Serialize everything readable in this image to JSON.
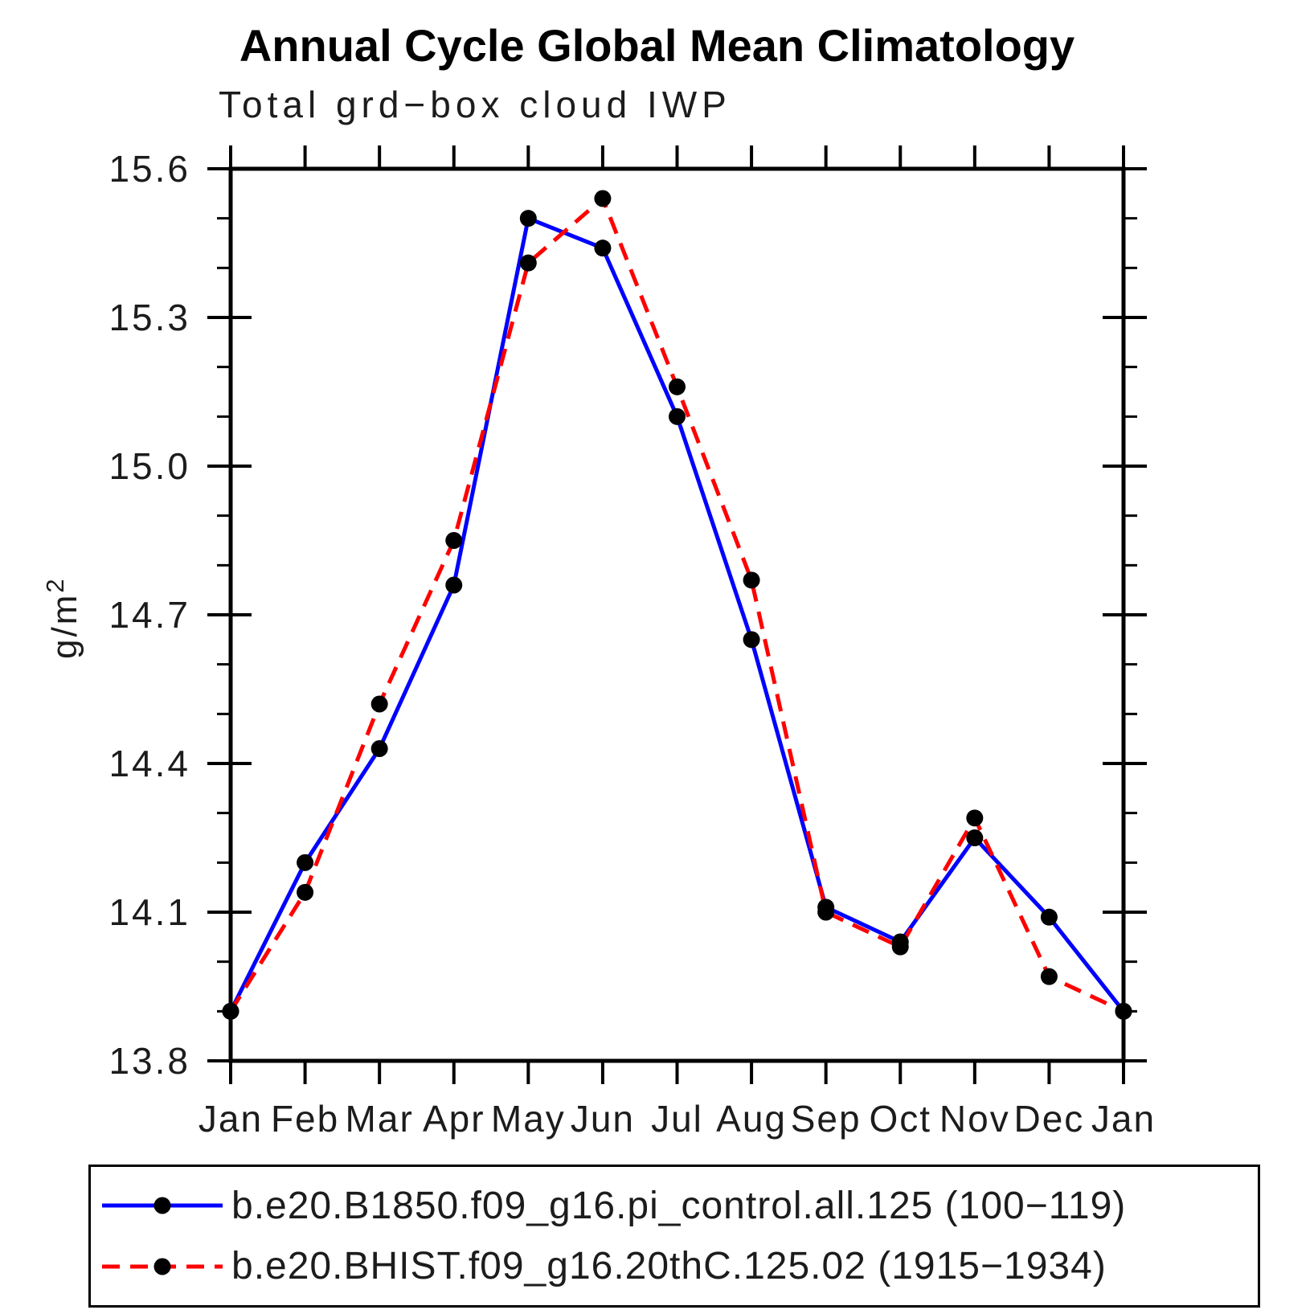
{
  "chart_data": {
    "type": "line",
    "title": "Annual Cycle Global Mean Climatology",
    "subtitle": "Total grd−box cloud IWP",
    "ylabel": "g/m²",
    "xlabel": "",
    "categories": [
      "Jan",
      "Feb",
      "Mar",
      "Apr",
      "May",
      "Jun",
      "Jul",
      "Aug",
      "Sep",
      "Oct",
      "Nov",
      "Dec",
      "Jan"
    ],
    "ylim": [
      13.8,
      15.6
    ],
    "ytick_labels": [
      "13.8",
      "14.1",
      "14.4",
      "14.7",
      "15.0",
      "15.3",
      "15.6"
    ],
    "ytick_minor_step": 0.1,
    "grid": "off",
    "legend_position": "bottom",
    "axis_color": "#000000",
    "marker_color": "#000000",
    "series": [
      {
        "name": "b.e20.B1850.f09_g16.pi_control.all.125 (100−119)",
        "color": "#0000ff",
        "style": "solid",
        "values": [
          13.9,
          14.2,
          14.43,
          14.76,
          15.5,
          15.44,
          15.1,
          14.65,
          14.11,
          14.04,
          14.25,
          14.09,
          13.9
        ]
      },
      {
        "name": "b.e20.BHIST.f09_g16.20thC.125.02 (1915−1934)",
        "color": "#ff0000",
        "style": "dashed",
        "values": [
          13.9,
          14.14,
          14.52,
          14.85,
          15.41,
          15.54,
          15.16,
          14.77,
          14.1,
          14.03,
          14.29,
          13.97,
          13.9
        ]
      }
    ]
  }
}
